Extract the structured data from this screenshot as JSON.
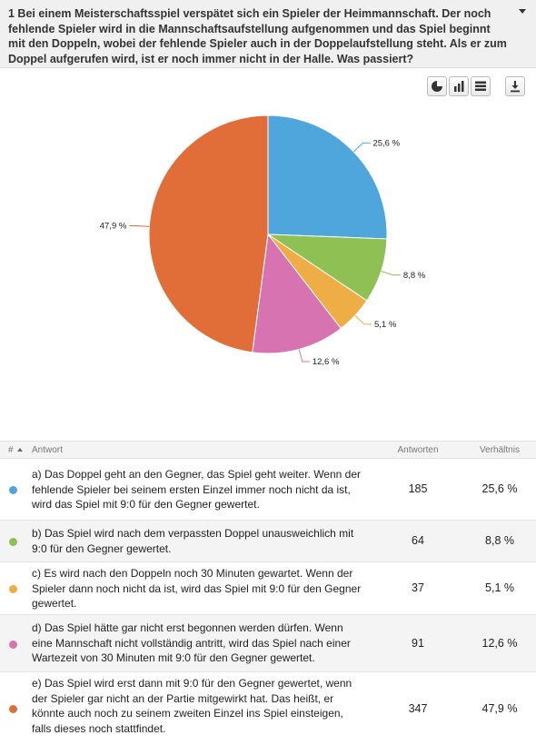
{
  "question": {
    "title": "1 Bei einem Meisterschaftsspiel verspätet sich ein Spieler der Heimmannschaft. Der noch fehlende Spieler wird in die Mannschaftsaufstellung aufgenommen und das Spiel beginnt mit den Doppeln, wobei der fehlende Spieler auch in der Doppelaufstellung steht. Als er zum Doppel aufgerufen wird, ist er noch immer nicht in der Halle. Was passiert?"
  },
  "toolbar": {
    "icons": [
      "pie-chart-icon",
      "bar-chart-icon",
      "table-icon",
      "download-icon"
    ]
  },
  "chart_data": {
    "type": "pie",
    "categories": [
      "a",
      "b",
      "c",
      "d",
      "e"
    ],
    "values": [
      25.6,
      8.8,
      5.1,
      12.6,
      47.9
    ],
    "labels": [
      "25,6 %",
      "8,8 %",
      "5,1 %",
      "12,6 %",
      "47,9 %"
    ],
    "colors": [
      "#4ea6dc",
      "#8ec054",
      "#efad45",
      "#d773b0",
      "#e16d38"
    ]
  },
  "table": {
    "headers": {
      "num": "#",
      "answer": "Antwort",
      "count": "Antworten",
      "ratio": "Verhältnis"
    },
    "rows": [
      {
        "answer": "a) Das Doppel geht an den Gegner, das Spiel geht weiter. Wenn der fehlende Spieler bei seinem ersten Einzel immer noch nicht da ist, wird das Spiel mit 9:0 für den Gegner gewertet.",
        "count": "185",
        "ratio": "25,6 %",
        "color": "#4ea6dc"
      },
      {
        "answer": "b) Das Spiel wird nach dem verpassten Doppel unausweichlich mit 9:0 für den Gegner gewertet.",
        "count": "64",
        "ratio": "8,8 %",
        "color": "#8ec054"
      },
      {
        "answer": "c) Es wird nach den Doppeln noch 30 Minuten gewartet. Wenn der Spieler dann noch nicht da ist, wird das Spiel mit 9:0 für den Gegner gewertet.",
        "count": "37",
        "ratio": "5,1 %",
        "color": "#efad45"
      },
      {
        "answer": "d) Das Spiel hätte gar nicht erst begonnen werden dürfen. Wenn eine Mannschaft nicht vollständig antritt, wird das Spiel nach einer Wartezeit von 30 Minuten mit 9:0 für den Gegner gewertet.",
        "count": "91",
        "ratio": "12,6 %",
        "color": "#d773b0"
      },
      {
        "answer": "e) Das Spiel wird erst dann mit 9:0 für den Gegner gewertet, wenn der Spieler gar nicht an der Partie mitgewirkt hat. Das heißt, er könnte auch noch zu seinem zweiten Einzel ins Spiel einsteigen, falls dieses noch stattfindet.",
        "count": "347",
        "ratio": "47,9 %",
        "color": "#e16d38"
      }
    ]
  }
}
